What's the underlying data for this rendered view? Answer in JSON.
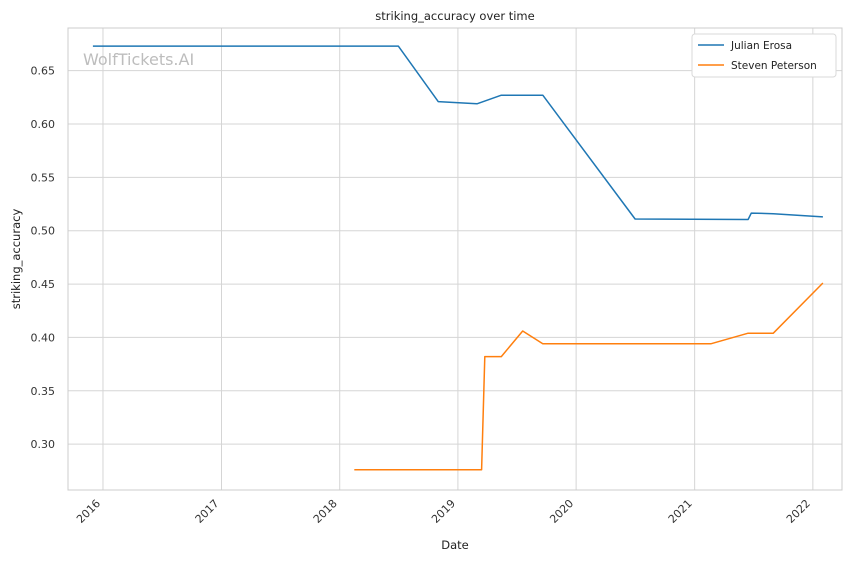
{
  "chart_data": {
    "type": "line",
    "title": "striking_accuracy over time",
    "xlabel": "Date",
    "ylabel": "striking_accuracy",
    "watermark": "WolfTickets.AI",
    "grid": true,
    "legend_position": "top-right",
    "x_ticks": [
      "2016",
      "2017",
      "2018",
      "2019",
      "2020",
      "2021",
      "2022"
    ],
    "y_ticks": [
      "0.30",
      "0.35",
      "0.40",
      "0.45",
      "0.50",
      "0.55",
      "0.60",
      "0.65"
    ],
    "xlim": [
      "2015-09-15",
      "2022-04-01"
    ],
    "ylim": [
      0.257,
      0.69
    ],
    "series": [
      {
        "name": "Julian Erosa",
        "color": "#1f77b4",
        "points": [
          [
            "2015-12-01",
            0.673
          ],
          [
            "2018-07-01",
            0.673
          ],
          [
            "2018-11-01",
            0.621
          ],
          [
            "2019-03-01",
            0.619
          ],
          [
            "2019-05-15",
            0.627
          ],
          [
            "2019-09-20",
            0.627
          ],
          [
            "2020-07-01",
            0.511
          ],
          [
            "2021-06-15",
            0.5105
          ],
          [
            "2021-06-25",
            0.5165
          ],
          [
            "2021-09-01",
            0.516
          ],
          [
            "2022-02-01",
            0.513
          ]
        ]
      },
      {
        "name": "Steven Peterson",
        "color": "#ff7f0e",
        "points": [
          [
            "2018-02-15",
            0.276
          ],
          [
            "2019-03-15",
            0.276
          ],
          [
            "2019-03-25",
            0.382
          ],
          [
            "2019-05-15",
            0.382
          ],
          [
            "2019-07-20",
            0.406
          ],
          [
            "2019-09-20",
            0.394
          ],
          [
            "2021-02-20",
            0.394
          ],
          [
            "2021-06-15",
            0.404
          ],
          [
            "2021-09-01",
            0.404
          ],
          [
            "2022-02-01",
            0.451
          ]
        ]
      }
    ]
  }
}
